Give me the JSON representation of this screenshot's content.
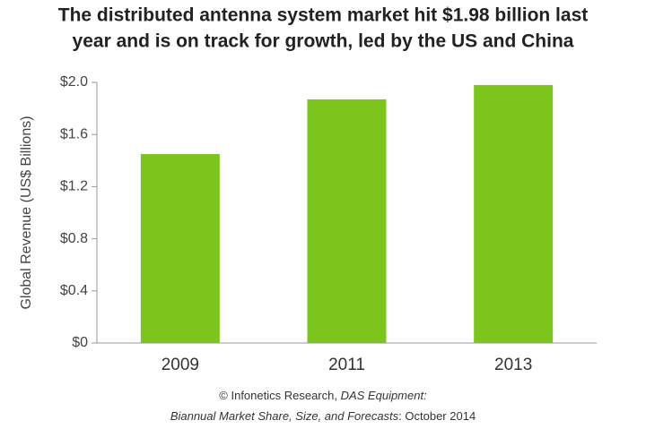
{
  "chart_data": {
    "type": "bar",
    "title": [
      "The distributed antenna system market hit $1.98 billion last",
      "year and is on track for growth, led by the US and China"
    ],
    "y_label": "Global Revenue (US$ Billions)",
    "categories": [
      "2009",
      "2011",
      "2013"
    ],
    "values": [
      1.45,
      1.87,
      1.98
    ],
    "color": "#7cc51d",
    "ylim": [
      0,
      2.0
    ],
    "yticks": [
      {
        "value": 0,
        "label": "$0"
      },
      {
        "value": 0.4,
        "label": "$0.4"
      },
      {
        "value": 0.8,
        "label": "$0.8"
      },
      {
        "value": 1.2,
        "label": "$1.2"
      },
      {
        "value": 1.6,
        "label": "$1.6"
      },
      {
        "value": 2.0,
        "label": "$2.0"
      }
    ],
    "source": [
      [
        {
          "text": "© Infonetics Research, ",
          "italic": false
        },
        {
          "text": "DAS Equipment:",
          "italic": true
        }
      ],
      [
        {
          "text": "Biannual Market Share, Size, and Forecasts",
          "italic": true
        },
        {
          "text": ": October 2014",
          "italic": false
        }
      ]
    ]
  }
}
